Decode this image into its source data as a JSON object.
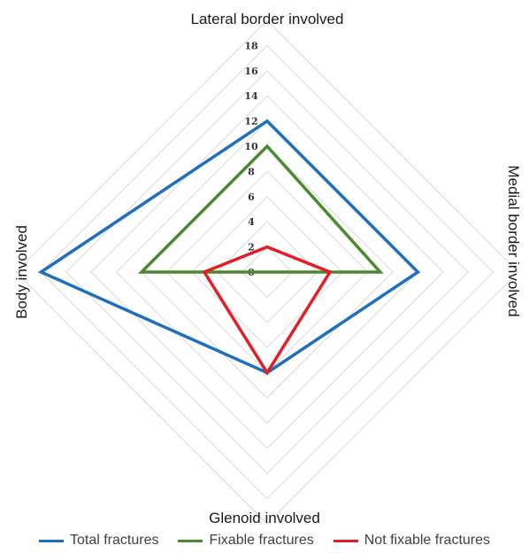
{
  "chart_data": {
    "type": "radar",
    "axes": [
      "Lateral border involved",
      "Medial border involved",
      "Glenoid involved",
      "Body involved"
    ],
    "tick_labels": [
      "0",
      "2",
      "4",
      "6",
      "8",
      "10",
      "12",
      "14",
      "16",
      "18"
    ],
    "range": [
      0,
      18
    ],
    "grid": true,
    "legend_position": "bottom",
    "series": [
      {
        "name": "Total fractures",
        "color": "#1f6fbf",
        "values": [
          12,
          12,
          8,
          18
        ]
      },
      {
        "name": "Fixable fractures",
        "color": "#4a8a2c",
        "values": [
          10,
          9,
          0,
          10
        ]
      },
      {
        "name": "Not fixable fractures",
        "color": "#e41e26",
        "values": [
          2,
          5,
          8,
          5
        ]
      }
    ]
  }
}
